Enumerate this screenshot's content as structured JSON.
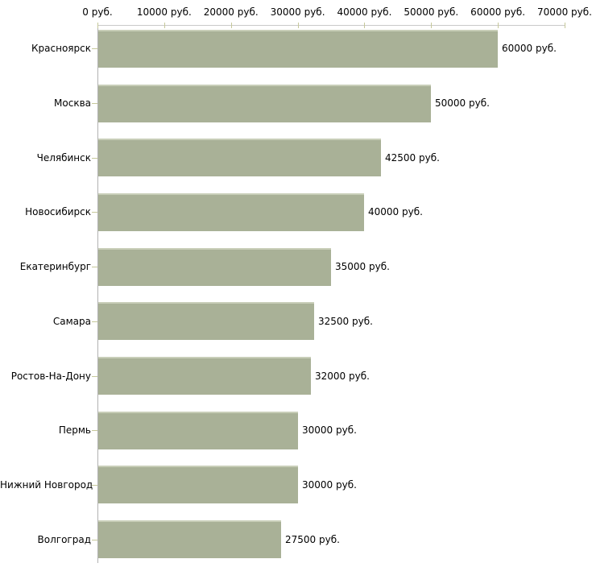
{
  "chart_data": {
    "type": "bar",
    "orientation": "horizontal",
    "title": "",
    "categories": [
      "Красноярск",
      "Москва",
      "Челябинск",
      "Новосибирск",
      "Екатеринбург",
      "Самара",
      "Ростов-На-Дону",
      "Пермь",
      "Нижний Новгород",
      "Волгоград"
    ],
    "values": [
      60000,
      50000,
      42500,
      40000,
      35000,
      32500,
      32000,
      30000,
      30000,
      27500
    ],
    "value_labels": [
      "60000 руб.",
      "50000 руб.",
      "42500 руб.",
      "40000 руб.",
      "35000 руб.",
      "32500 руб.",
      "32000 руб.",
      "30000 руб.",
      "30000 руб.",
      "27500 руб."
    ],
    "x_axis": {
      "position": "top",
      "min": 0,
      "max": 70000,
      "tick_values": [
        0,
        10000,
        20000,
        30000,
        40000,
        50000,
        60000,
        70000
      ],
      "tick_labels": [
        "0 руб.",
        "10000 руб.",
        "20000 руб.",
        "30000 руб.",
        "40000 руб.",
        "50000 руб.",
        "60000 руб.",
        "70000 руб."
      ]
    },
    "grid": false,
    "legend": false,
    "colors": {
      "bar_fill": "#a9b197",
      "bar_top_highlight": "#c8ceb8",
      "x_axis_line": "#c9c9c9",
      "y_axis_line": "#b2b2b2",
      "tick_mark": "#c6c89a",
      "label_text": "#000000",
      "background": "#ffffff"
    }
  }
}
